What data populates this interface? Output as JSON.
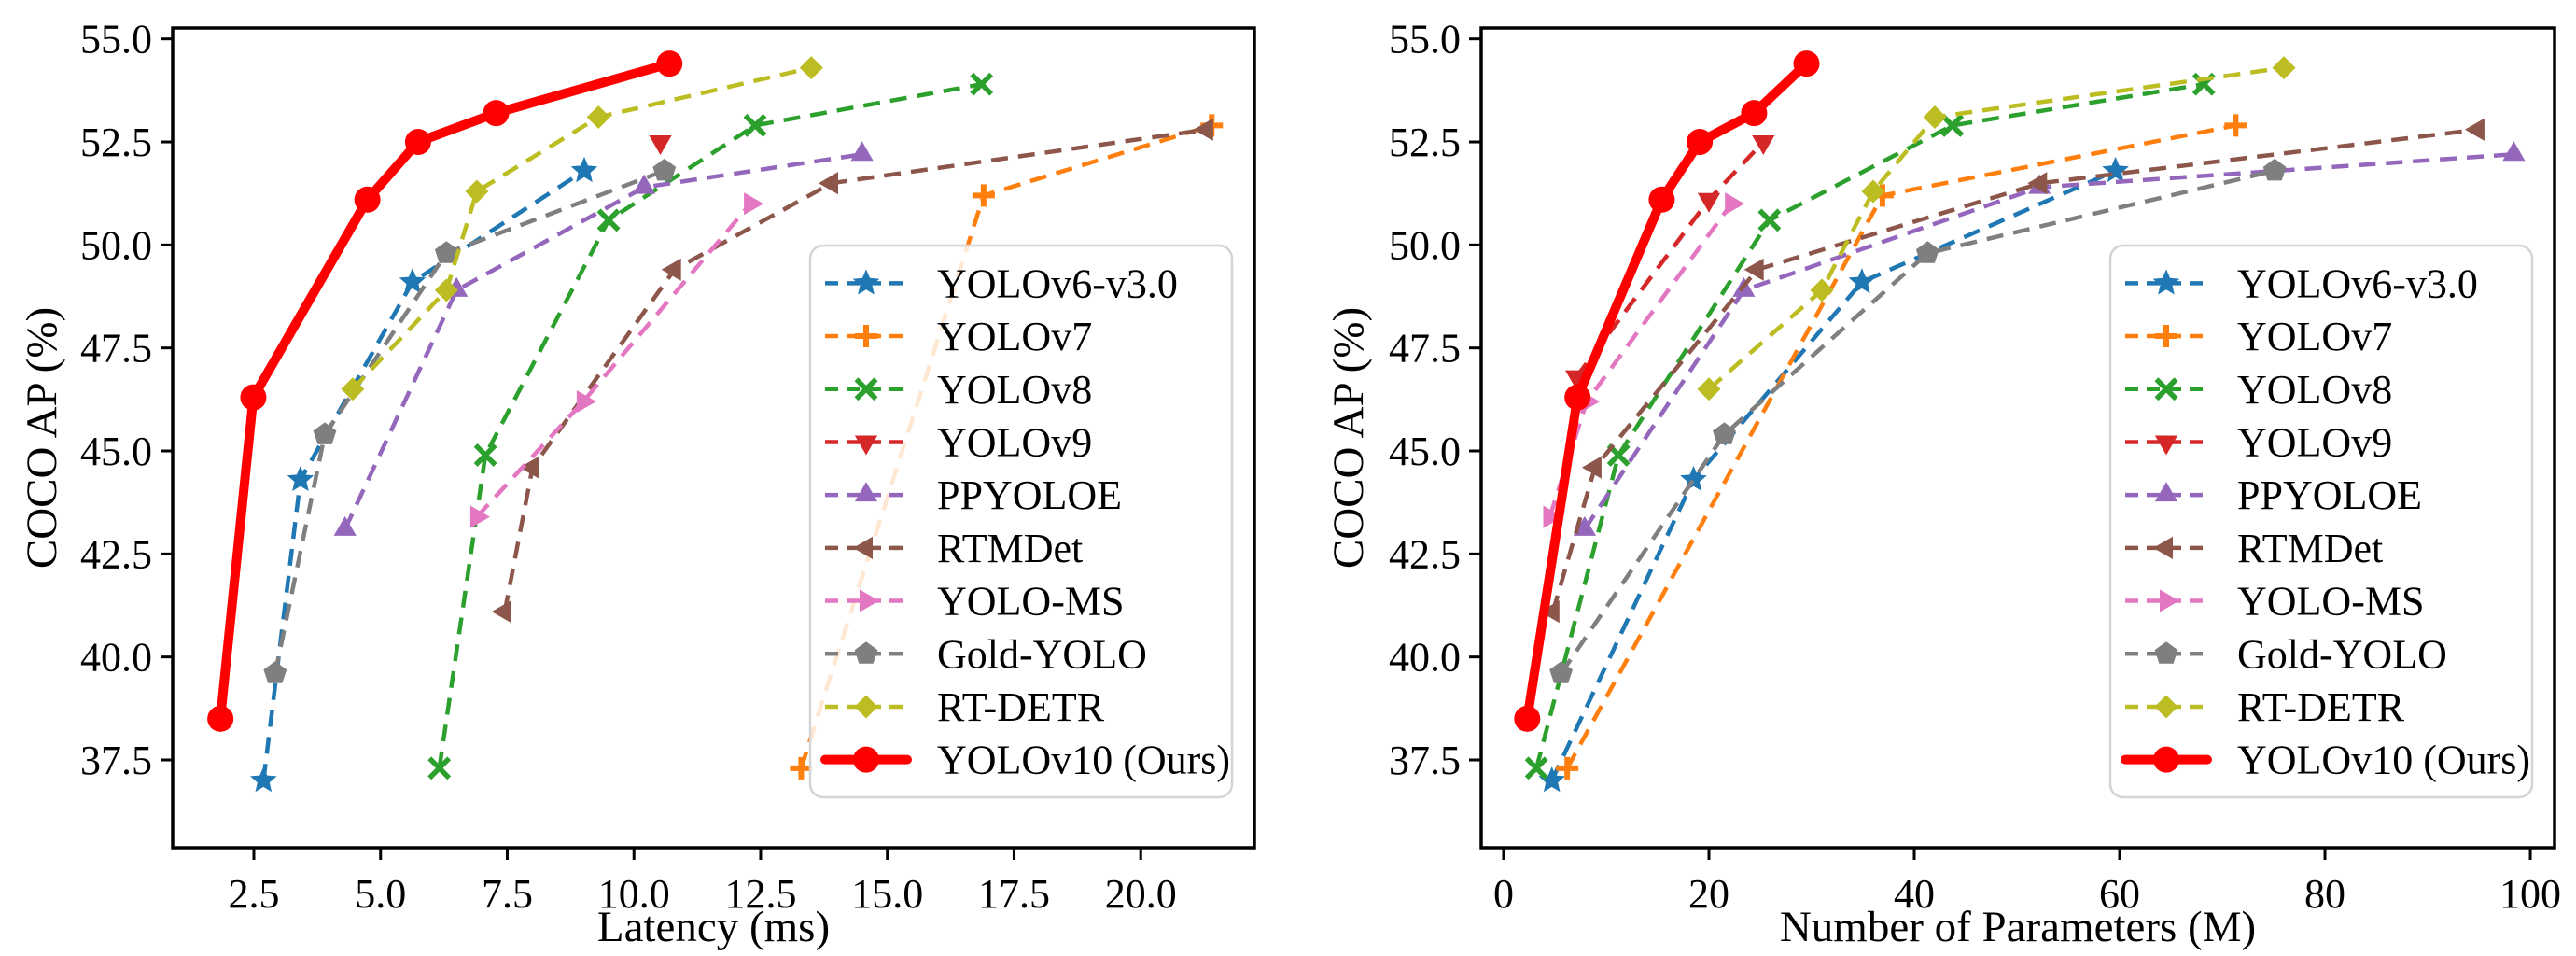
{
  "figure_title": "",
  "shared": {
    "ylabel": "COCO AP (%)",
    "legend_labels": [
      "YOLOv6-v3.0",
      "YOLOv7",
      "YOLOv8",
      "YOLOv9",
      "PPYOLOE",
      "RTMDet",
      "YOLO-MS",
      "Gold-YOLO",
      "RT-DETR",
      "YOLOv10 (Ours)"
    ],
    "colors": {
      "yolov6": "#1f77b4",
      "yolov7": "#ff7f0e",
      "yolov8": "#2ca02c",
      "yolov9": "#d62728",
      "ppyoloe": "#9467bd",
      "rtmdet": "#8c564b",
      "yolo-ms": "#e377c2",
      "gold-yolo": "#7f7f7f",
      "rt-detr": "#bcbd22",
      "yolov10": "#ff0000",
      "axis": "#000000",
      "legend_border": "#d4d4d4"
    }
  },
  "chart_data": [
    {
      "type": "line",
      "id": "latency-plot",
      "xlabel": "Latency (ms)",
      "ylabel": "COCO AP (%)",
      "xlim": [
        0.898,
        22.243
      ],
      "ylim": [
        35.37,
        55.265
      ],
      "xticks": [
        2.5,
        5.0,
        7.5,
        10.0,
        12.5,
        15.0,
        17.5,
        20.0
      ],
      "xtick_labels": [
        "2.5",
        "5.0",
        "7.5",
        "10.0",
        "12.5",
        "15.0",
        "17.5",
        "20.0"
      ],
      "yticks": [
        37.5,
        40.0,
        42.5,
        45.0,
        47.5,
        50.0,
        52.5,
        55.0
      ],
      "ytick_labels": [
        "37.5",
        "40.0",
        "42.5",
        "45.0",
        "47.5",
        "50.0",
        "52.5",
        "55.0"
      ],
      "grid": false,
      "legend_position": "lower right",
      "series": [
        {
          "id": "yolov6",
          "name": "YOLOv6-v3.0",
          "color": "#1f77b4",
          "marker": "star",
          "line_style": "dashed",
          "line_width": 4.5,
          "points": [
            [
              2.69,
              37.0
            ],
            [
              3.42,
              44.3
            ],
            [
              5.63,
              49.1
            ],
            [
              9.02,
              51.8
            ]
          ]
        },
        {
          "id": "yolov7",
          "name": "YOLOv7",
          "color": "#ff7f0e",
          "marker": "plus",
          "line_style": "dashed",
          "line_width": 4.5,
          "points": [
            [
              13.3,
              37.3
            ],
            [
              16.9,
              51.2
            ],
            [
              21.4,
              52.9
            ]
          ]
        },
        {
          "id": "yolov8",
          "name": "YOLOv8",
          "color": "#2ca02c",
          "marker": "x",
          "line_style": "dashed",
          "line_width": 4.5,
          "points": [
            [
              6.16,
              37.3
            ],
            [
              7.07,
              44.9
            ],
            [
              9.5,
              50.6
            ],
            [
              12.39,
              52.9
            ],
            [
              16.86,
              53.9
            ]
          ]
        },
        {
          "id": "yolov9",
          "name": "YOLOv9",
          "color": "#d62728",
          "marker": "triangle-down",
          "line_style": "dashed",
          "line_width": 4.5,
          "points": [
            [
              10.52,
              52.5
            ]
          ]
        },
        {
          "id": "ppyoloe",
          "name": "PPYOLOE",
          "color": "#9467bd",
          "marker": "triangle-up",
          "line_style": "dashed",
          "line_width": 4.5,
          "points": [
            [
              4.3,
              43.1
            ],
            [
              6.5,
              48.9
            ],
            [
              10.2,
              51.4
            ],
            [
              14.5,
              52.2
            ]
          ]
        },
        {
          "id": "rtmdet",
          "name": "RTMDet",
          "color": "#8c564b",
          "marker": "triangle-left",
          "line_style": "dashed",
          "line_width": 4.5,
          "points": [
            [
              7.45,
              41.1
            ],
            [
              8.0,
              44.6
            ],
            [
              10.8,
              49.4
            ],
            [
              13.9,
              51.5
            ],
            [
              21.3,
              52.8
            ]
          ]
        },
        {
          "id": "yolo-ms",
          "name": "YOLO-MS",
          "color": "#e377c2",
          "marker": "triangle-right",
          "line_style": "dashed",
          "line_width": 4.5,
          "points": [
            [
              6.9,
              43.4
            ],
            [
              9.0,
              46.2
            ],
            [
              12.3,
              51.0
            ]
          ]
        },
        {
          "id": "gold-yolo",
          "name": "Gold-YOLO",
          "color": "#7f7f7f",
          "marker": "pentagon",
          "line_style": "dashed",
          "line_width": 4.5,
          "points": [
            [
              2.92,
              39.6
            ],
            [
              3.9,
              45.4
            ],
            [
              6.3,
              49.8
            ],
            [
              10.6,
              51.8
            ]
          ]
        },
        {
          "id": "rt-detr",
          "name": "RT-DETR",
          "color": "#bcbd22",
          "marker": "diamond",
          "line_style": "dashed",
          "line_width": 4.5,
          "points": [
            [
              4.45,
              46.5
            ],
            [
              6.3,
              48.9
            ],
            [
              6.9,
              51.3
            ],
            [
              9.3,
              53.1
            ],
            [
              13.5,
              54.3
            ]
          ]
        },
        {
          "id": "yolov10",
          "name": "YOLOv10 (Ours)",
          "color": "#ff0000",
          "marker": "circle",
          "line_style": "solid",
          "line_width": 10,
          "points": [
            [
              1.84,
              38.5
            ],
            [
              2.49,
              46.3
            ],
            [
              4.74,
              51.1
            ],
            [
              5.74,
              52.5
            ],
            [
              7.28,
              53.2
            ],
            [
              10.7,
              54.4
            ]
          ]
        }
      ]
    },
    {
      "type": "line",
      "id": "params-plot",
      "xlabel": "Number of Parameters (M)",
      "ylabel": "COCO AP (%)",
      "xlim": [
        -2.18,
        102.36
      ],
      "ylim": [
        35.37,
        55.265
      ],
      "xticks": [
        0,
        20,
        40,
        60,
        80,
        100
      ],
      "xtick_labels": [
        "0",
        "20",
        "40",
        "60",
        "80",
        "100"
      ],
      "yticks": [
        37.5,
        40.0,
        42.5,
        45.0,
        47.5,
        50.0,
        52.5,
        55.0
      ],
      "ytick_labels": [
        "37.5",
        "40.0",
        "42.5",
        "45.0",
        "47.5",
        "50.0",
        "52.5",
        "55.0"
      ],
      "grid": false,
      "legend_position": "lower right",
      "series": [
        {
          "id": "yolov6",
          "name": "YOLOv6-v3.0",
          "color": "#1f77b4",
          "marker": "star",
          "line_style": "dashed",
          "line_width": 4.5,
          "points": [
            [
              4.7,
              37.0
            ],
            [
              18.5,
              44.3
            ],
            [
              34.9,
              49.1
            ],
            [
              59.6,
              51.8
            ]
          ]
        },
        {
          "id": "yolov7",
          "name": "YOLOv7",
          "color": "#ff7f0e",
          "marker": "plus",
          "line_style": "dashed",
          "line_width": 4.5,
          "points": [
            [
              6.2,
              37.3
            ],
            [
              36.9,
              51.2
            ],
            [
              71.3,
              52.9
            ]
          ]
        },
        {
          "id": "yolov8",
          "name": "YOLOv8",
          "color": "#2ca02c",
          "marker": "x",
          "line_style": "dashed",
          "line_width": 4.5,
          "points": [
            [
              3.2,
              37.3
            ],
            [
              11.2,
              44.9
            ],
            [
              25.9,
              50.6
            ],
            [
              43.7,
              52.9
            ],
            [
              68.2,
              53.9
            ]
          ]
        },
        {
          "id": "yolov9",
          "name": "YOLOv9",
          "color": "#d62728",
          "marker": "triangle-down",
          "line_style": "dashed",
          "line_width": 4.5,
          "points": [
            [
              7.1,
              46.8
            ],
            [
              20.0,
              51.1
            ],
            [
              25.3,
              52.5
            ]
          ]
        },
        {
          "id": "ppyoloe",
          "name": "PPYOLOE",
          "color": "#9467bd",
          "marker": "triangle-up",
          "line_style": "dashed",
          "line_width": 4.5,
          "points": [
            [
              7.9,
              43.1
            ],
            [
              23.4,
              48.9
            ],
            [
              52.2,
              51.4
            ],
            [
              98.4,
              52.2
            ]
          ]
        },
        {
          "id": "rtmdet",
          "name": "RTMDet",
          "color": "#8c564b",
          "marker": "triangle-left",
          "line_style": "dashed",
          "line_width": 4.5,
          "points": [
            [
              4.8,
              41.1
            ],
            [
              8.9,
              44.6
            ],
            [
              24.7,
              49.4
            ],
            [
              52.3,
              51.5
            ],
            [
              94.9,
              52.8
            ]
          ]
        },
        {
          "id": "yolo-ms",
          "name": "YOLO-MS",
          "color": "#e377c2",
          "marker": "triangle-right",
          "line_style": "dashed",
          "line_width": 4.5,
          "points": [
            [
              4.5,
              43.4
            ],
            [
              8.1,
              46.2
            ],
            [
              22.2,
              51.0
            ]
          ]
        },
        {
          "id": "gold-yolo",
          "name": "Gold-YOLO",
          "color": "#7f7f7f",
          "marker": "pentagon",
          "line_style": "dashed",
          "line_width": 4.5,
          "points": [
            [
              5.6,
              39.6
            ],
            [
              21.5,
              45.4
            ],
            [
              41.3,
              49.8
            ],
            [
              75.1,
              51.8
            ]
          ]
        },
        {
          "id": "rt-detr",
          "name": "RT-DETR",
          "color": "#bcbd22",
          "marker": "diamond",
          "line_style": "dashed",
          "line_width": 4.5,
          "points": [
            [
              20.0,
              46.5
            ],
            [
              31.0,
              48.9
            ],
            [
              36.0,
              51.3
            ],
            [
              42.0,
              53.1
            ],
            [
              76.0,
              54.3
            ]
          ]
        },
        {
          "id": "yolov10",
          "name": "YOLOv10 (Ours)",
          "color": "#ff0000",
          "marker": "circle",
          "line_style": "solid",
          "line_width": 10,
          "points": [
            [
              2.3,
              38.5
            ],
            [
              7.2,
              46.3
            ],
            [
              15.4,
              51.1
            ],
            [
              19.1,
              52.5
            ],
            [
              24.4,
              53.2
            ],
            [
              29.5,
              54.4
            ]
          ]
        }
      ]
    }
  ]
}
